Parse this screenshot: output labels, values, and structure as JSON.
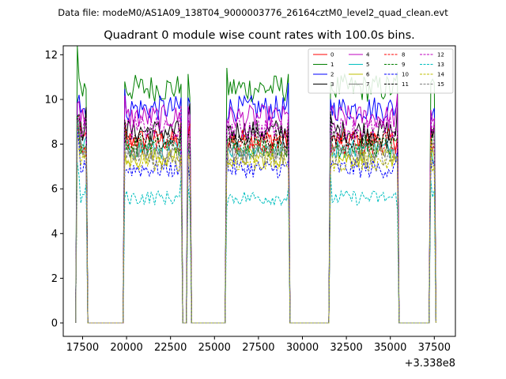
{
  "suptitle": "Data file: modeM0/AS1A09_138T04_9000003776_26164cztM0_level2_quad_clean.evt",
  "chart_data": {
    "type": "line",
    "title": "Quadrant 0 module wise count rates with 100.0s bins.",
    "xlabel": "",
    "ylabel": "",
    "x_offset_label": "+3.338e8",
    "xlim": [
      16400,
      38700
    ],
    "ylim": [
      -0.6,
      12.4
    ],
    "xticks": [
      17500,
      20000,
      22500,
      25000,
      27500,
      30000,
      32500,
      35000,
      37500
    ],
    "xtick_labels": [
      "17500",
      "20000",
      "22500",
      "25000",
      "27500",
      "30000",
      "32500",
      "35000",
      "37500"
    ],
    "yticks": [
      0,
      2,
      4,
      6,
      8,
      10,
      12
    ],
    "ytick_labels": [
      "0",
      "2",
      "4",
      "6",
      "8",
      "10",
      "12"
    ],
    "legend_position": "top-right",
    "good_intervals": [
      [
        17200,
        17700
      ],
      [
        19900,
        23100
      ],
      [
        23500,
        23600
      ],
      [
        25700,
        29200
      ],
      [
        31600,
        35400
      ],
      [
        37300,
        37500
      ]
    ],
    "series": [
      {
        "name": "0",
        "level": 8.2,
        "color": "#ff0000",
        "dash": "solid"
      },
      {
        "name": "1",
        "level": 10.5,
        "color": "#008000",
        "dash": "solid"
      },
      {
        "name": "2",
        "level": 9.6,
        "color": "#0000ff",
        "dash": "solid"
      },
      {
        "name": "3",
        "level": 8.6,
        "color": "#000000",
        "dash": "solid"
      },
      {
        "name": "4",
        "level": 9.2,
        "color": "#bf00bf",
        "dash": "solid"
      },
      {
        "name": "5",
        "level": 7.8,
        "color": "#00bfbf",
        "dash": "solid"
      },
      {
        "name": "6",
        "level": 7.4,
        "color": "#bfbf00",
        "dash": "solid"
      },
      {
        "name": "7",
        "level": 7.7,
        "color": "#808080",
        "dash": "solid"
      },
      {
        "name": "8",
        "level": 8.0,
        "color": "#ff0000",
        "dash": "dashed"
      },
      {
        "name": "9",
        "level": 7.9,
        "color": "#008000",
        "dash": "dashed"
      },
      {
        "name": "10",
        "level": 6.9,
        "color": "#0000ff",
        "dash": "dashed"
      },
      {
        "name": "11",
        "level": 8.3,
        "color": "#000000",
        "dash": "dashed"
      },
      {
        "name": "12",
        "level": 8.7,
        "color": "#bf00bf",
        "dash": "dashed"
      },
      {
        "name": "13",
        "level": 5.6,
        "color": "#00bfbf",
        "dash": "dashed"
      },
      {
        "name": "14",
        "level": 7.2,
        "color": "#bfbf00",
        "dash": "dashed"
      },
      {
        "name": "15",
        "level": 7.5,
        "color": "#808080",
        "dash": "dashed"
      }
    ]
  }
}
